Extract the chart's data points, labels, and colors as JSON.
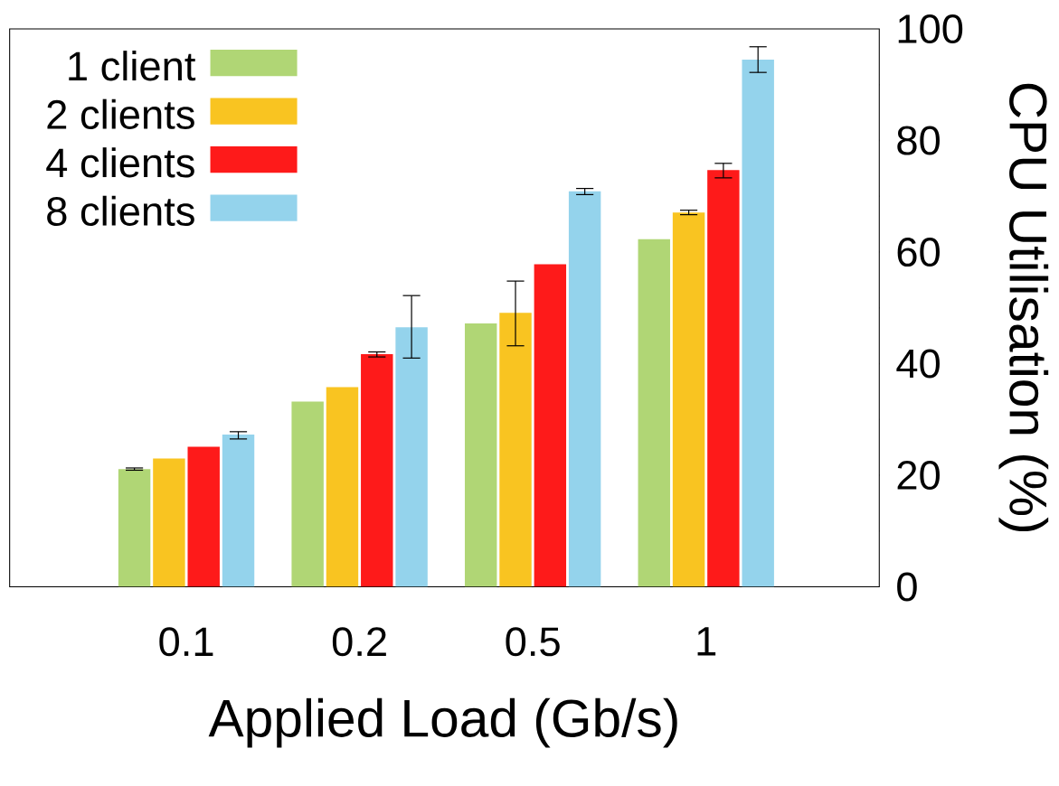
{
  "chart_data": {
    "type": "bar",
    "xlabel": "Applied Load (Gb/s)",
    "ylabel": "CPU Utilisation (%)",
    "categories": [
      "0.1",
      "0.2",
      "0.5",
      "1"
    ],
    "series": [
      {
        "name": "1 client",
        "color": "#b0d675",
        "values": [
          21.1,
          33.2,
          47.2,
          62.3
        ],
        "errors": [
          [
            20.9,
            21.3
          ],
          null,
          null,
          null
        ]
      },
      {
        "name": "2 clients",
        "color": "#f9c421",
        "values": [
          23.0,
          35.8,
          49.1,
          67.1
        ],
        "errors": [
          null,
          null,
          [
            43.2,
            54.8
          ],
          [
            66.7,
            67.5
          ]
        ]
      },
      {
        "name": "4 clients",
        "color": "#fe1a1a",
        "values": [
          25.1,
          41.7,
          57.8,
          74.7
        ],
        "errors": [
          null,
          [
            41.2,
            42.1
          ],
          null,
          [
            73.3,
            75.9
          ]
        ]
      },
      {
        "name": "8 clients",
        "color": "#94d3ec",
        "values": [
          27.3,
          46.5,
          70.9,
          94.5
        ],
        "errors": [
          [
            26.5,
            27.8
          ],
          [
            41.0,
            52.2
          ],
          [
            70.3,
            71.4
          ],
          [
            92.2,
            96.8
          ]
        ]
      }
    ],
    "ylim": [
      0,
      100
    ],
    "yticks": [
      0,
      {
        "value": 10,
        "label": null
      },
      20,
      {
        "value": 30,
        "label": null
      },
      40,
      {
        "value": 50,
        "label": null
      },
      60,
      {
        "value": 70,
        "label": null
      },
      80,
      {
        "value": 90,
        "label": null
      },
      100
    ],
    "legend": "top left"
  }
}
